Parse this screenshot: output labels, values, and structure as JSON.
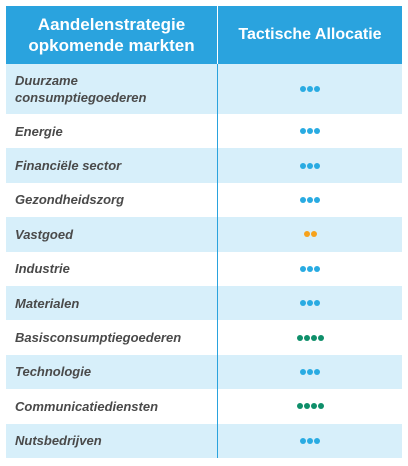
{
  "header": {
    "left": "Aandelenstrategie opkomende markten",
    "right": "Tactische Allocatie"
  },
  "colors": {
    "blue": "#29abe2",
    "orange": "#f7a21b",
    "green": "#0f8f6a"
  },
  "rows": [
    {
      "label": "Duurzame consumptiegoederen",
      "dots": 3,
      "color": "blue"
    },
    {
      "label": "Energie",
      "dots": 3,
      "color": "blue"
    },
    {
      "label": "Financiële sector",
      "dots": 3,
      "color": "blue"
    },
    {
      "label": "Gezondheidszorg",
      "dots": 3,
      "color": "blue"
    },
    {
      "label": "Vastgoed",
      "dots": 2,
      "color": "orange"
    },
    {
      "label": "Industrie",
      "dots": 3,
      "color": "blue"
    },
    {
      "label": "Materialen",
      "dots": 3,
      "color": "blue"
    },
    {
      "label": "Basisconsumptiegoederen",
      "dots": 4,
      "color": "green"
    },
    {
      "label": "Technologie",
      "dots": 3,
      "color": "blue"
    },
    {
      "label": "Communicatiediensten",
      "dots": 4,
      "color": "green"
    },
    {
      "label": "Nutsbedrijven",
      "dots": 3,
      "color": "blue"
    }
  ]
}
